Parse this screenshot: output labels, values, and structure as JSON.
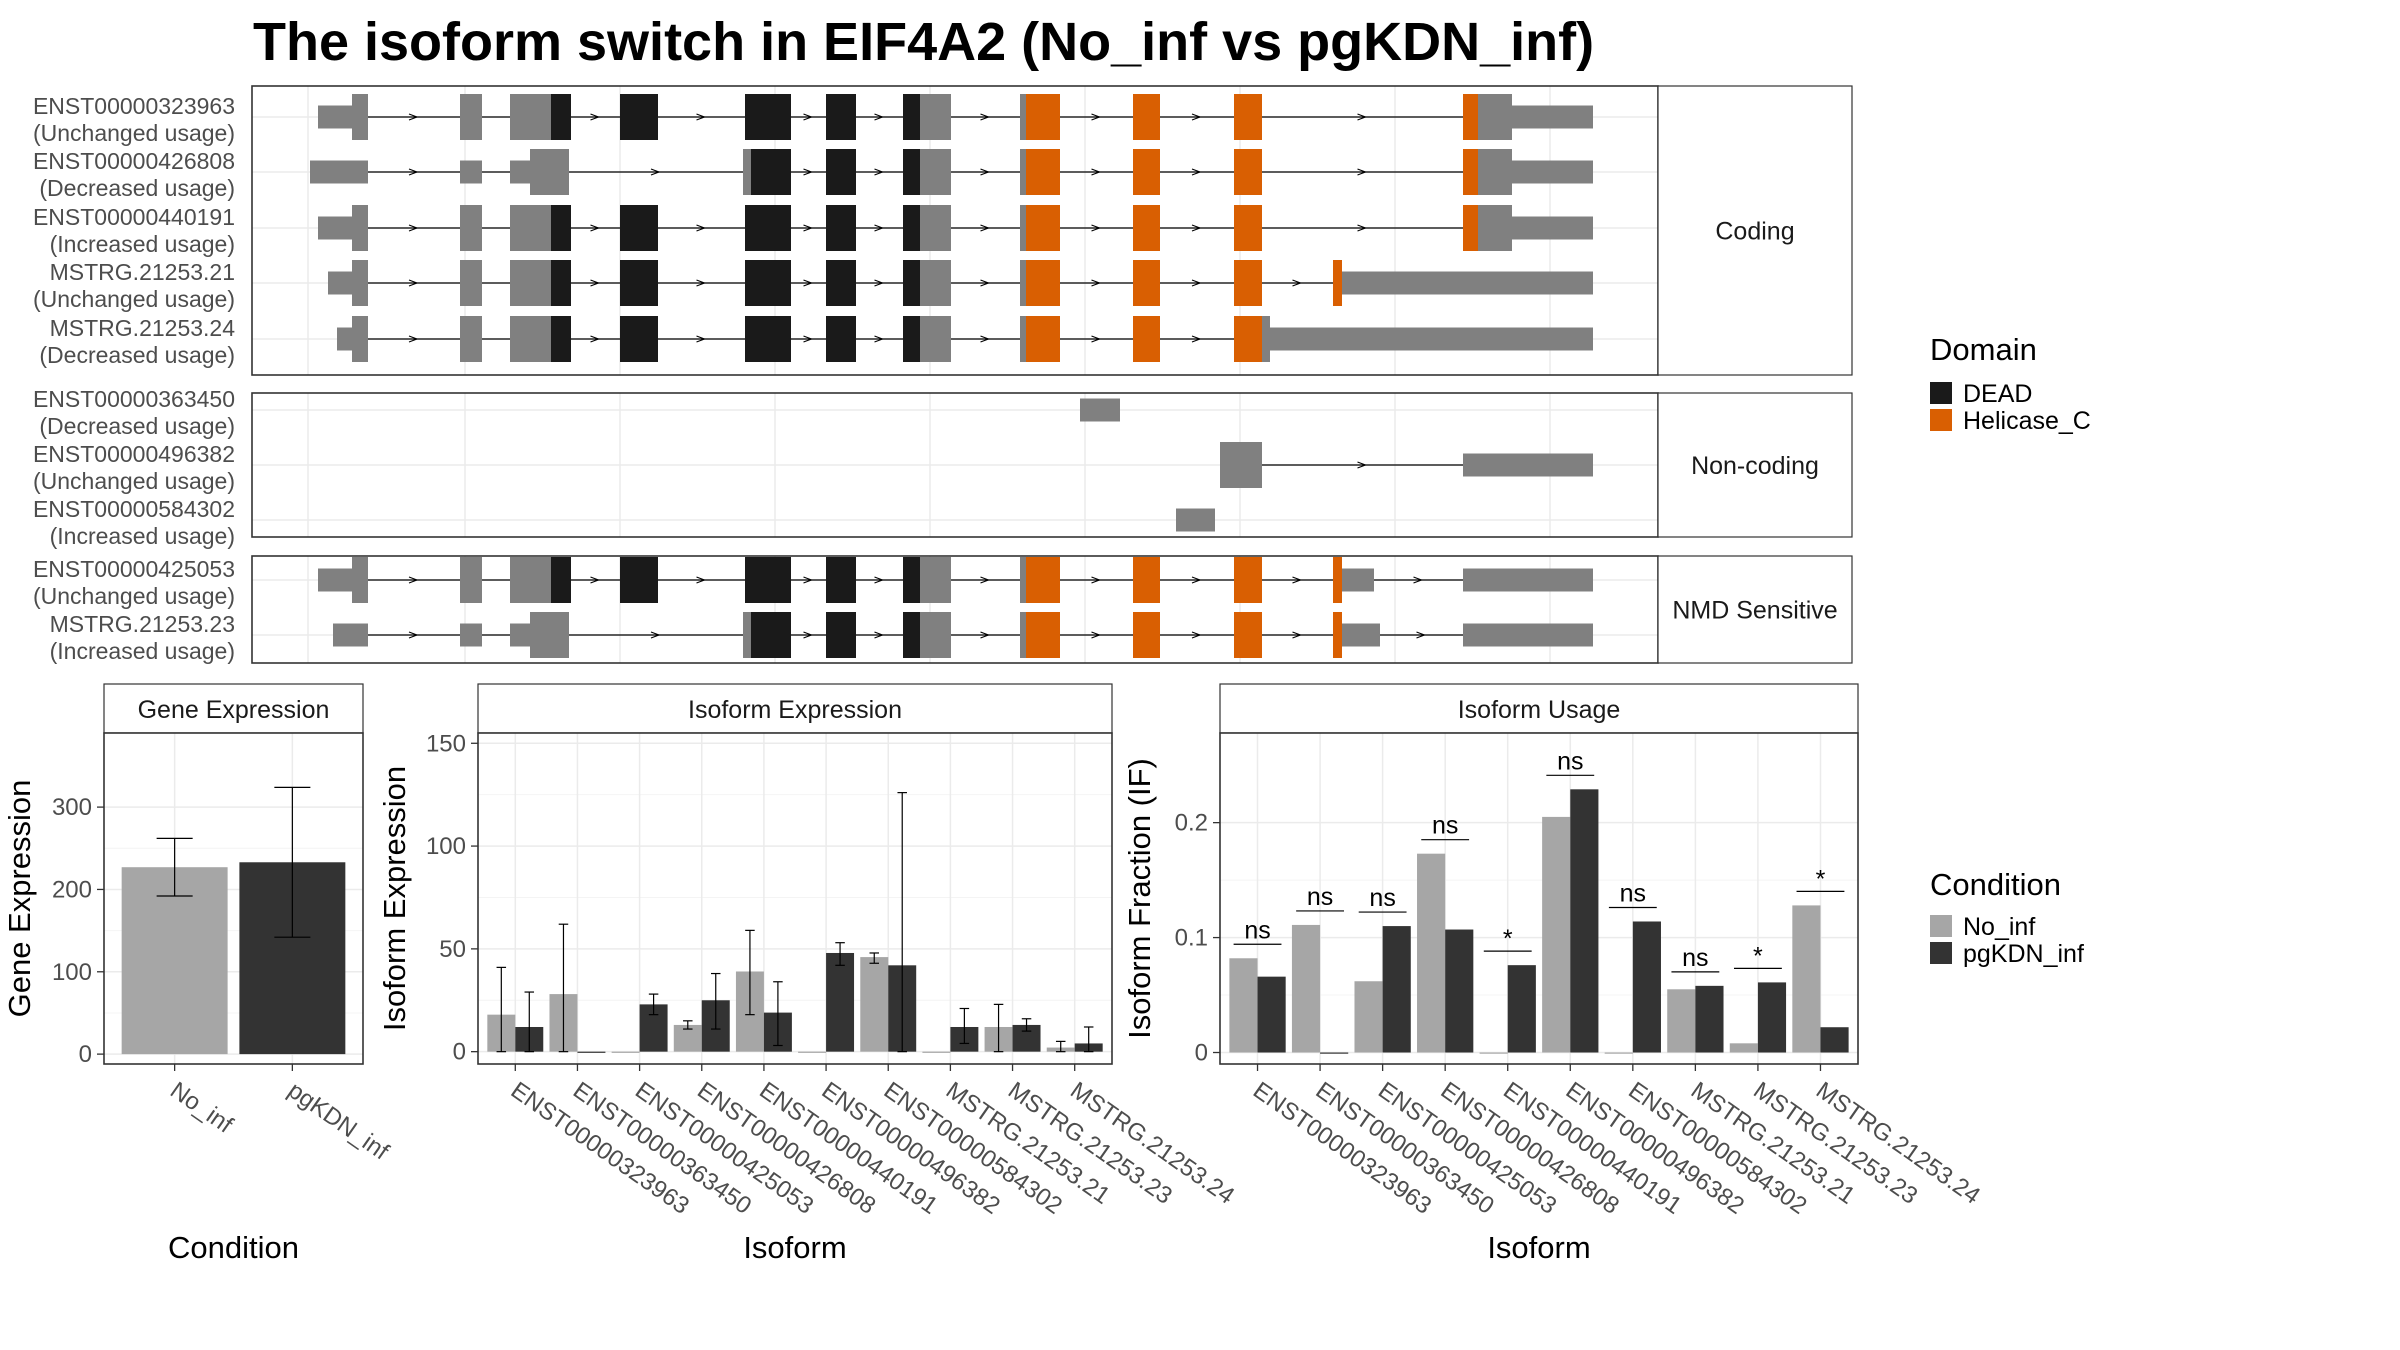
{
  "title": "The isoform switch in EIF4A2 (No_inf vs pgKDN_inf)",
  "colors": {
    "DEAD": "#1a1a1a",
    "Helicase_C": "#d95f02",
    "noncoding_exon": "#808080",
    "No_inf": "#a6a6a6",
    "pgKDN_inf": "#333333"
  },
  "structure": {
    "groups": [
      {
        "name": "Coding",
        "transcripts": [
          {
            "id": "ENST00000323963",
            "usage": "(Unchanged usage)"
          },
          {
            "id": "ENST00000426808",
            "usage": "(Decreased usage)"
          },
          {
            "id": "ENST00000440191",
            "usage": "(Increased usage)"
          },
          {
            "id": "MSTRG.21253.21",
            "usage": "(Unchanged usage)"
          },
          {
            "id": "MSTRG.21253.24",
            "usage": "(Decreased usage)"
          }
        ]
      },
      {
        "name": "Non-coding",
        "transcripts": [
          {
            "id": "ENST00000363450",
            "usage": "(Decreased usage)"
          },
          {
            "id": "ENST00000496382",
            "usage": "(Unchanged usage)"
          },
          {
            "id": "ENST00000584302",
            "usage": "(Increased usage)"
          }
        ]
      },
      {
        "name": "NMD Sensitive",
        "transcripts": [
          {
            "id": "ENST00000425053",
            "usage": "(Unchanged usage)"
          },
          {
            "id": "MSTRG.21253.23",
            "usage": "(Increased usage)"
          }
        ]
      }
    ]
  },
  "legend_domain": {
    "title": "Domain",
    "items": [
      "DEAD",
      "Helicase_C"
    ]
  },
  "legend_condition": {
    "title": "Condition",
    "items": [
      "No_inf",
      "pgKDN_inf"
    ]
  },
  "chart_data": [
    {
      "type": "bar",
      "panel": "Gene Expression",
      "xlabel": "Condition",
      "ylabel": "Gene Expression",
      "categories": [
        "No_inf",
        "pgKDN_inf"
      ],
      "values": [
        227,
        233
      ],
      "error_low": [
        192,
        142
      ],
      "error_high": [
        262,
        324
      ],
      "ylim": [
        -12,
        390
      ],
      "yticks": [
        0,
        100,
        200,
        300
      ]
    },
    {
      "type": "bar",
      "panel": "Isoform Expression",
      "xlabel": "Isoform",
      "ylabel": "Isoform Expression",
      "categories": [
        "ENST00000323963",
        "ENST00000363450",
        "ENST00000425053",
        "ENST00000426808",
        "ENST00000440191",
        "ENST00000496382",
        "ENST00000584302",
        "MSTRG.21253.21",
        "MSTRG.21253.23",
        "MSTRG.21253.24"
      ],
      "series": [
        {
          "name": "No_inf",
          "values": [
            18,
            28,
            0,
            13,
            39,
            0,
            46,
            0,
            12,
            2
          ],
          "error_low": [
            0,
            0,
            0,
            11,
            18,
            0,
            43,
            0,
            0,
            0
          ],
          "error_high": [
            41,
            62,
            0,
            15,
            59,
            0,
            48,
            0,
            23,
            5
          ]
        },
        {
          "name": "pgKDN_inf",
          "values": [
            12,
            0,
            23,
            25,
            19,
            48,
            42,
            12,
            13,
            4
          ],
          "error_low": [
            0,
            0,
            18,
            11,
            3,
            42,
            0,
            4,
            10,
            0
          ],
          "error_high": [
            29,
            0,
            28,
            38,
            34,
            53,
            126,
            21,
            16,
            12
          ]
        }
      ],
      "category_order_note": "",
      "ylim": [
        -6,
        155
      ],
      "yticks": [
        0,
        50,
        100,
        150
      ]
    },
    {
      "type": "bar",
      "panel": "Isoform Usage",
      "xlabel": "Isoform",
      "ylabel": "Isoform Fraction (IF)",
      "categories": [
        "ENST00000323963",
        "ENST00000363450",
        "ENST00000425053",
        "ENST00000426808",
        "ENST00000440191",
        "ENST00000496382",
        "ENST00000584302",
        "MSTRG.21253.21",
        "MSTRG.21253.23",
        "MSTRG.21253.24"
      ],
      "series": [
        {
          "name": "No_inf",
          "values": [
            0.082,
            0.111,
            0.062,
            0.173,
            0.0,
            0.205,
            0.0,
            0.055,
            0.008,
            0.128
          ]
        },
        {
          "name": "pgKDN_inf",
          "values": [
            0.066,
            0.0,
            0.11,
            0.107,
            0.076,
            0.229,
            0.114,
            0.058,
            0.061,
            0.022
          ]
        }
      ],
      "significance": [
        "ns",
        "ns",
        "ns",
        "ns",
        "*",
        "ns",
        "ns",
        "ns",
        "*",
        "*"
      ],
      "ylim": [
        -0.01,
        0.278
      ],
      "yticks": [
        0.0,
        0.1,
        0.2
      ]
    }
  ]
}
